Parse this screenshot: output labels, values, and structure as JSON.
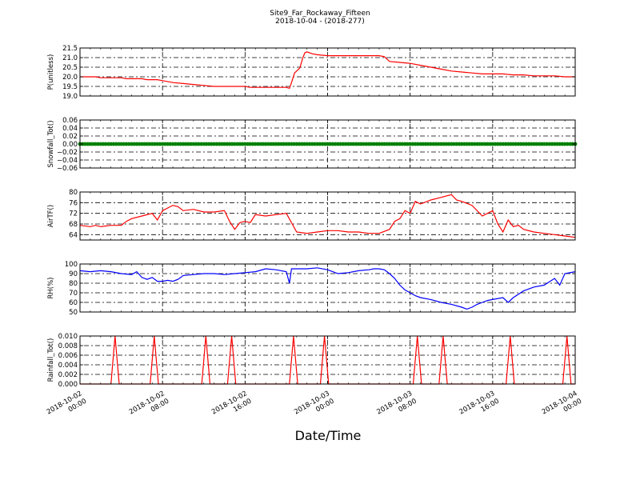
{
  "figure": {
    "title_line1": "Site9_Far_Rockaway_Fifteen",
    "title_line2": "2018-10-04 - (2018-277)",
    "xlabel": "Date/Time",
    "x_ticks": [
      {
        "hour": 0,
        "line1": "2018-10-02",
        "line2": "00:00"
      },
      {
        "hour": 8,
        "line1": "2018-10-02",
        "line2": "08:00"
      },
      {
        "hour": 16,
        "line1": "2018-10-02",
        "line2": "16:00"
      },
      {
        "hour": 24,
        "line1": "2018-10-03",
        "line2": "00:00"
      },
      {
        "hour": 32,
        "line1": "2018-10-03",
        "line2": "08:00"
      },
      {
        "hour": 40,
        "line1": "2018-10-03",
        "line2": "16:00"
      },
      {
        "hour": 48,
        "line1": "2018-10-04",
        "line2": "00:00"
      }
    ],
    "x_range_hours": [
      0,
      48
    ],
    "grid": true
  },
  "chart_data": [
    {
      "type": "line",
      "ylabel": "P(unitless)",
      "color": "#ff0000",
      "ylim": [
        19.0,
        21.5
      ],
      "yticks": [
        19.0,
        19.5,
        20.0,
        20.5,
        21.0,
        21.5
      ],
      "ytick_labels": [
        "19.0",
        "19.5",
        "20.0",
        "20.5",
        "21.0",
        "21.5"
      ],
      "x": [
        0,
        1.5,
        2,
        3,
        4,
        4.5,
        6,
        6.5,
        7.5,
        8,
        9,
        10,
        11,
        12,
        13,
        14,
        15,
        16,
        16.5,
        17,
        18,
        19,
        20,
        20.3,
        20.5,
        20.8,
        21.3,
        21.6,
        21.8,
        22,
        22.5,
        23,
        24,
        25,
        26,
        27,
        28,
        29,
        29.5,
        30,
        31,
        32,
        33,
        34,
        35,
        36,
        37,
        38,
        39,
        40,
        41,
        42,
        43,
        44,
        45,
        46,
        47,
        48
      ],
      "y": [
        20.0,
        20.0,
        19.95,
        19.95,
        19.95,
        19.9,
        19.9,
        19.85,
        19.85,
        19.8,
        19.7,
        19.65,
        19.6,
        19.55,
        19.5,
        19.5,
        19.5,
        19.5,
        19.45,
        19.45,
        19.45,
        19.45,
        19.45,
        19.4,
        19.7,
        20.2,
        20.45,
        21.0,
        21.25,
        21.3,
        21.2,
        21.15,
        21.1,
        21.1,
        21.1,
        21.1,
        21.1,
        21.1,
        21.05,
        20.8,
        20.75,
        20.7,
        20.6,
        20.5,
        20.4,
        20.3,
        20.25,
        20.2,
        20.15,
        20.15,
        20.15,
        20.1,
        20.1,
        20.05,
        20.05,
        20.05,
        20.0,
        20.0
      ]
    },
    {
      "type": "scatter",
      "ylabel": "Snowfall_Tot()",
      "color": "#008000",
      "ylim": [
        -0.06,
        0.06
      ],
      "yticks": [
        -0.06,
        -0.04,
        -0.02,
        0.0,
        0.02,
        0.04,
        0.06
      ],
      "ytick_labels": [
        "−0.06",
        "−0.04",
        "−0.02",
        "0.00",
        "0.02",
        "0.04",
        "0.06"
      ],
      "constant_value": 0.0,
      "x_start": 0,
      "x_end": 48,
      "x_step": 0.25
    },
    {
      "type": "line",
      "ylabel": "AirTF()",
      "color": "#ff0000",
      "ylim": [
        62,
        80
      ],
      "yticks": [
        64,
        68,
        72,
        76,
        80
      ],
      "ytick_labels": [
        "64",
        "68",
        "72",
        "76",
        "80"
      ],
      "x": [
        0,
        1,
        1.5,
        2,
        3,
        4,
        4.5,
        5,
        6,
        7,
        7.5,
        8,
        8.5,
        9,
        9.5,
        10,
        11,
        12,
        13,
        14,
        14.5,
        15,
        15.5,
        16,
        16.5,
        17,
        18,
        19,
        20,
        21,
        22,
        23,
        24,
        25,
        26,
        27,
        28,
        29,
        30,
        30.5,
        31,
        31.5,
        32,
        32.5,
        33,
        34,
        35,
        36,
        36.5,
        37,
        38,
        39,
        40,
        40.5,
        41,
        41.5,
        42,
        42.5,
        43,
        44,
        45,
        46,
        47,
        48
      ],
      "y": [
        67.5,
        67,
        67.5,
        67,
        67.5,
        67.5,
        69,
        70,
        71,
        72,
        69.5,
        73,
        74,
        75,
        74.5,
        73,
        73.5,
        72.5,
        72.5,
        73,
        69,
        66,
        68.5,
        69,
        68.5,
        71.5,
        71,
        71.5,
        72,
        65,
        64.5,
        65,
        65.5,
        65.5,
        65,
        65,
        64.5,
        64.5,
        66,
        69,
        70,
        73,
        72,
        76.5,
        75.5,
        77,
        78,
        79,
        77,
        76.5,
        75,
        71,
        73,
        68,
        65,
        69.5,
        67,
        67.5,
        66,
        65,
        64.5,
        64,
        63.5,
        63
      ]
    },
    {
      "type": "line",
      "ylabel": "RH(%)",
      "color": "#0000ff",
      "ylim": [
        50,
        100
      ],
      "yticks": [
        50,
        60,
        70,
        80,
        90,
        100
      ],
      "ytick_labels": [
        "50",
        "60",
        "70",
        "80",
        "90",
        "100"
      ],
      "x": [
        0,
        1,
        2,
        3,
        4,
        5,
        5.5,
        6,
        6.5,
        7,
        7.5,
        8,
        8.5,
        9,
        9.5,
        10,
        11,
        12,
        13,
        14,
        15,
        16,
        17,
        18,
        19,
        20,
        20.3,
        20.5,
        21,
        22,
        23,
        24,
        25,
        26,
        27,
        28,
        28.5,
        29,
        29.5,
        30,
        30.5,
        31,
        31.5,
        32,
        32.5,
        33,
        34,
        35,
        36,
        37,
        37.5,
        38,
        38.5,
        39,
        39.5,
        40,
        41,
        41.5,
        42,
        43,
        44,
        45,
        46,
        46.5,
        47,
        48
      ],
      "y": [
        93,
        92,
        93,
        92,
        90,
        89,
        92,
        86,
        84,
        86,
        82,
        82,
        83,
        82,
        84,
        88,
        89,
        90,
        90,
        89,
        90,
        91,
        92,
        95,
        94,
        92,
        80,
        95,
        95,
        95,
        96,
        94,
        90,
        91,
        93,
        94,
        95,
        95,
        94,
        90,
        85,
        78,
        73,
        70,
        67,
        65,
        63,
        60,
        58,
        55,
        53,
        55,
        58,
        60,
        62,
        63,
        65,
        60,
        65,
        72,
        76,
        78,
        85,
        78,
        90,
        92
      ]
    },
    {
      "type": "line",
      "ylabel": "Rainfall_Tot()",
      "color": "#ff0000",
      "ylim": [
        0,
        0.01
      ],
      "yticks": [
        0.0,
        0.002,
        0.004,
        0.006,
        0.008,
        0.01
      ],
      "ytick_labels": [
        "0.000",
        "0.002",
        "0.004",
        "0.006",
        "0.008",
        "0.010"
      ],
      "spike_value": 0.01,
      "spike_hours": [
        3.4,
        7.2,
        12.2,
        14.7,
        20.7,
        23.7,
        32.7,
        35.2,
        41.7,
        47.2
      ]
    }
  ]
}
